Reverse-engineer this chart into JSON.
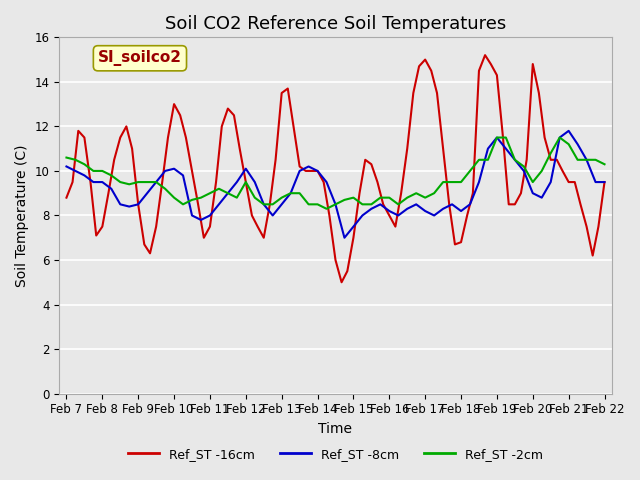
{
  "title": "Soil CO2 Reference Soil Temperatures",
  "xlabel": "Time",
  "ylabel": "Soil Temperature (C)",
  "annotation": "SI_soilco2",
  "xlim_days": [
    0,
    15
  ],
  "ylim": [
    0,
    16
  ],
  "yticks": [
    0,
    2,
    4,
    6,
    8,
    10,
    12,
    14,
    16
  ],
  "xtick_labels": [
    "Feb 7",
    "Feb 8",
    "Feb 9",
    "Feb 10",
    "Feb 11",
    "Feb 12",
    "Feb 13",
    "Feb 14",
    "Feb 15",
    "Feb 16",
    "Feb 17",
    "Feb 18",
    "Feb 19",
    "Feb 20",
    "Feb 21",
    "Feb 22"
  ],
  "background_color": "#e8e8e8",
  "plot_bg_color": "#e8e8e8",
  "grid_color": "#ffffff",
  "series": {
    "Ref_ST -16cm": {
      "color": "#cc0000",
      "linewidth": 1.5,
      "data_x": [
        0.0,
        0.17,
        0.33,
        0.5,
        0.67,
        0.83,
        1.0,
        1.17,
        1.33,
        1.5,
        1.67,
        1.83,
        2.0,
        2.17,
        2.33,
        2.5,
        2.67,
        2.83,
        3.0,
        3.17,
        3.33,
        3.5,
        3.67,
        3.83,
        4.0,
        4.17,
        4.33,
        4.5,
        4.67,
        4.83,
        5.0,
        5.17,
        5.33,
        5.5,
        5.67,
        5.83,
        6.0,
        6.17,
        6.33,
        6.5,
        6.67,
        6.83,
        7.0,
        7.17,
        7.33,
        7.5,
        7.67,
        7.83,
        8.0,
        8.17,
        8.33,
        8.5,
        8.67,
        8.83,
        9.0,
        9.17,
        9.33,
        9.5,
        9.67,
        9.83,
        10.0,
        10.17,
        10.33,
        10.5,
        10.67,
        10.83,
        11.0,
        11.17,
        11.33,
        11.5,
        11.67,
        11.83,
        12.0,
        12.17,
        12.33,
        12.5,
        12.67,
        12.83,
        13.0,
        13.17,
        13.33,
        13.5,
        13.67,
        13.83,
        14.0,
        14.17,
        14.33,
        14.5,
        14.67,
        14.83,
        15.0
      ],
      "data_y": [
        8.8,
        9.5,
        11.8,
        11.5,
        9.5,
        7.1,
        7.5,
        9.0,
        10.5,
        11.5,
        12.0,
        11.0,
        8.5,
        6.7,
        6.3,
        7.5,
        9.5,
        11.5,
        13.0,
        12.5,
        11.5,
        10.0,
        8.5,
        7.0,
        7.5,
        9.5,
        12.0,
        12.8,
        12.5,
        11.0,
        9.5,
        8.0,
        7.5,
        7.0,
        8.5,
        10.5,
        13.5,
        13.7,
        12.0,
        10.2,
        10.0,
        10.0,
        10.0,
        9.5,
        8.0,
        6.0,
        5.0,
        5.5,
        7.0,
        9.0,
        10.5,
        10.3,
        9.5,
        8.5,
        8.0,
        7.5,
        9.0,
        11.0,
        13.5,
        14.7,
        15.0,
        14.5,
        13.5,
        11.0,
        8.5,
        6.7,
        6.8,
        8.0,
        9.0,
        14.5,
        15.2,
        14.8,
        14.3,
        11.5,
        8.5,
        8.5,
        9.0,
        10.5,
        14.8,
        13.5,
        11.5,
        10.5,
        10.5,
        10.0,
        9.5,
        9.5,
        8.5,
        7.5,
        6.2,
        7.5,
        9.5
      ]
    },
    "Ref_ST -8cm": {
      "color": "#0000cc",
      "linewidth": 1.5,
      "data_x": [
        0.0,
        0.25,
        0.5,
        0.75,
        1.0,
        1.25,
        1.5,
        1.75,
        2.0,
        2.25,
        2.5,
        2.75,
        3.0,
        3.25,
        3.5,
        3.75,
        4.0,
        4.25,
        4.5,
        4.75,
        5.0,
        5.25,
        5.5,
        5.75,
        6.0,
        6.25,
        6.5,
        6.75,
        7.0,
        7.25,
        7.5,
        7.75,
        8.0,
        8.25,
        8.5,
        8.75,
        9.0,
        9.25,
        9.5,
        9.75,
        10.0,
        10.25,
        10.5,
        10.75,
        11.0,
        11.25,
        11.5,
        11.75,
        12.0,
        12.25,
        12.5,
        12.75,
        13.0,
        13.25,
        13.5,
        13.75,
        14.0,
        14.25,
        14.5,
        14.75,
        15.0
      ],
      "data_y": [
        10.2,
        10.0,
        9.8,
        9.5,
        9.5,
        9.2,
        8.5,
        8.4,
        8.5,
        9.0,
        9.5,
        10.0,
        10.1,
        9.8,
        8.0,
        7.8,
        8.0,
        8.5,
        9.0,
        9.5,
        10.1,
        9.5,
        8.5,
        8.0,
        8.5,
        9.0,
        10.0,
        10.2,
        10.0,
        9.5,
        8.5,
        7.0,
        7.5,
        8.0,
        8.3,
        8.5,
        8.2,
        8.0,
        8.3,
        8.5,
        8.2,
        8.0,
        8.3,
        8.5,
        8.2,
        8.5,
        9.5,
        11.0,
        11.5,
        11.0,
        10.5,
        10.0,
        9.0,
        8.8,
        9.5,
        11.5,
        11.8,
        11.2,
        10.5,
        9.5,
        9.5
      ]
    },
    "Ref_ST -2cm": {
      "color": "#00aa00",
      "linewidth": 1.5,
      "data_x": [
        0.0,
        0.25,
        0.5,
        0.75,
        1.0,
        1.25,
        1.5,
        1.75,
        2.0,
        2.25,
        2.5,
        2.75,
        3.0,
        3.25,
        3.5,
        3.75,
        4.0,
        4.25,
        4.5,
        4.75,
        5.0,
        5.25,
        5.5,
        5.75,
        6.0,
        6.25,
        6.5,
        6.75,
        7.0,
        7.25,
        7.5,
        7.75,
        8.0,
        8.25,
        8.5,
        8.75,
        9.0,
        9.25,
        9.5,
        9.75,
        10.0,
        10.25,
        10.5,
        10.75,
        11.0,
        11.25,
        11.5,
        11.75,
        12.0,
        12.25,
        12.5,
        12.75,
        13.0,
        13.25,
        13.5,
        13.75,
        14.0,
        14.25,
        14.5,
        14.75,
        15.0
      ],
      "data_y": [
        10.6,
        10.5,
        10.3,
        10.0,
        10.0,
        9.8,
        9.5,
        9.4,
        9.5,
        9.5,
        9.5,
        9.2,
        8.8,
        8.5,
        8.7,
        8.8,
        9.0,
        9.2,
        9.0,
        8.8,
        9.5,
        8.8,
        8.5,
        8.5,
        8.8,
        9.0,
        9.0,
        8.5,
        8.5,
        8.3,
        8.5,
        8.7,
        8.8,
        8.5,
        8.5,
        8.8,
        8.8,
        8.5,
        8.8,
        9.0,
        8.8,
        9.0,
        9.5,
        9.5,
        9.5,
        10.0,
        10.5,
        10.5,
        11.5,
        11.5,
        10.5,
        10.2,
        9.5,
        10.0,
        10.8,
        11.5,
        11.2,
        10.5,
        10.5,
        10.5,
        10.3
      ]
    }
  },
  "legend": [
    {
      "label": "Ref_ST -16cm",
      "color": "#cc0000"
    },
    {
      "label": "Ref_ST -8cm",
      "color": "#0000cc"
    },
    {
      "label": "Ref_ST -2cm",
      "color": "#00aa00"
    }
  ],
  "title_fontsize": 13,
  "axis_label_fontsize": 10,
  "tick_fontsize": 8.5,
  "legend_fontsize": 9
}
